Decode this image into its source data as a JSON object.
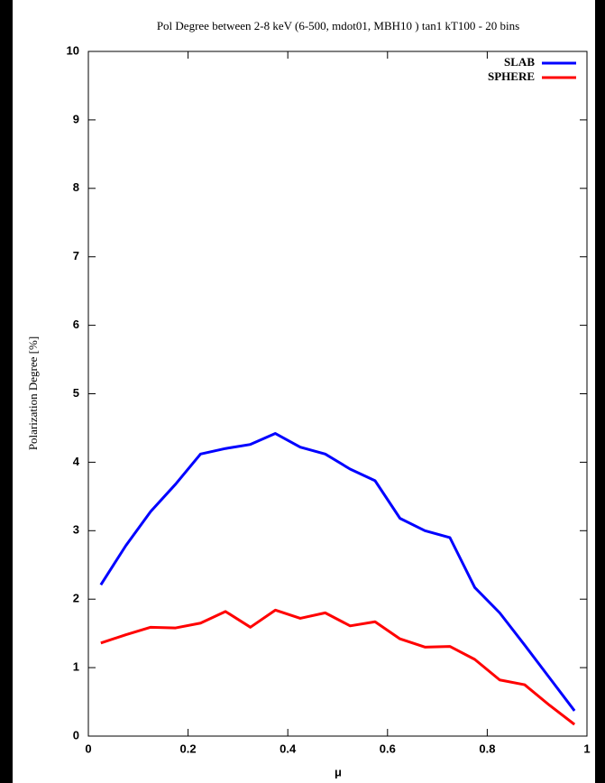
{
  "chart_data": {
    "type": "line",
    "title": "Pol Degree  between 2-8 keV (6-500, mdot01, MBH10 ) tan1 kT100 - 20 bins",
    "x_label": "μ",
    "y_label": "Polarization Degree [%]",
    "x": [
      0.025,
      0.075,
      0.125,
      0.175,
      0.225,
      0.275,
      0.325,
      0.375,
      0.425,
      0.475,
      0.525,
      0.575,
      0.625,
      0.675,
      0.725,
      0.775,
      0.825,
      0.875,
      0.925,
      0.975
    ],
    "series": [
      {
        "name": "SLAB",
        "color": "#0000ff",
        "values": [
          2.21,
          2.78,
          3.28,
          3.68,
          4.12,
          4.2,
          4.26,
          4.42,
          4.22,
          4.12,
          3.9,
          3.73,
          3.18,
          3.0,
          2.9,
          2.17,
          1.8,
          1.33,
          0.85,
          0.37
        ]
      },
      {
        "name": "SPHERE",
        "color": "#ff0000",
        "values": [
          1.36,
          1.48,
          1.59,
          1.58,
          1.65,
          1.82,
          1.59,
          1.84,
          1.72,
          1.8,
          1.61,
          1.67,
          1.42,
          1.3,
          1.31,
          1.12,
          0.82,
          0.75,
          0.45,
          0.17
        ]
      }
    ],
    "xlim": [
      0,
      1
    ],
    "xticks": [
      0,
      0.2,
      0.4,
      0.6,
      0.8,
      1
    ],
    "ylim": [
      0,
      10
    ],
    "yticks": [
      0,
      1,
      2,
      3,
      4,
      5,
      6,
      7,
      8,
      9,
      10
    ],
    "legend": "top-right",
    "grid": false
  }
}
